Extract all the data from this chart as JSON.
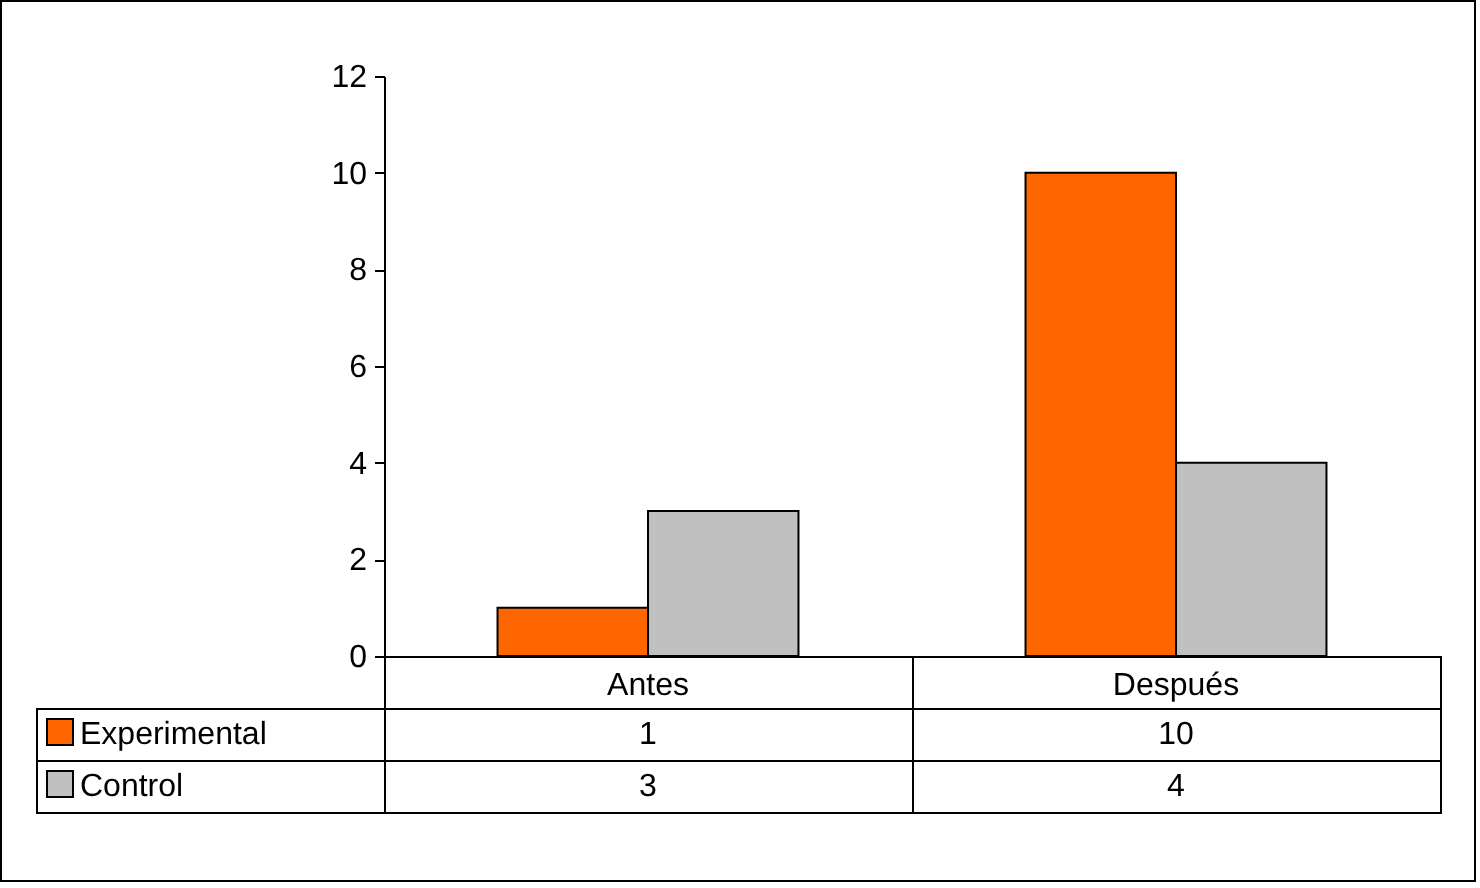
{
  "chart_data": {
    "type": "bar",
    "categories": [
      "Antes",
      "Después"
    ],
    "series": [
      {
        "name": "Experimental",
        "color": "#ff6600",
        "values": [
          1,
          10
        ]
      },
      {
        "name": "Control",
        "color": "#c0c0c0",
        "values": [
          3,
          4
        ]
      }
    ],
    "ylim": [
      0,
      12
    ],
    "yticks": [
      0,
      2,
      4,
      6,
      8,
      10,
      12
    ],
    "grid": false,
    "legend": "bottom left",
    "data_labels": true
  }
}
